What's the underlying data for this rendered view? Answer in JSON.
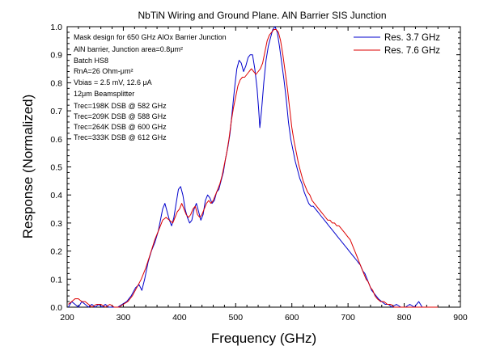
{
  "chart_data": {
    "type": "line",
    "title": "NbTiN Wiring and Ground Plane. AlN Barrier SIS Junction",
    "xlabel": "Frequency (GHz)",
    "ylabel": "Response (Normalized)",
    "xlim": [
      200,
      900
    ],
    "ylim": [
      0,
      1.0
    ],
    "xticks": [
      "200",
      "300",
      "400",
      "500",
      "600",
      "700",
      "800",
      "900"
    ],
    "yticks": [
      "0.0",
      "0.1",
      "0.2",
      "0.3",
      "0.4",
      "0.5",
      "0.6",
      "0.7",
      "0.8",
      "0.9",
      "1.0"
    ],
    "grid": false,
    "legend_position": "top-right",
    "annotations": [
      "Mask design for 650 GHz AlOx Barrier Junction",
      "AlN barrier, Junction area=0.8μm²",
      "Batch HS8",
      "RnA=26 Ohm-μm²",
      "Vbias = 2.5 mV, 12.6 μA",
      "12μm Beamsplitter",
      "Trec=198K DSB @ 582 GHz",
      "Trec=209K DSB @ 588 GHz",
      "Trec=264K DSB @ 600 GHz",
      "Trec=333K DSB @ 612 GHz"
    ],
    "series": [
      {
        "name": "Res. 3.7 GHz",
        "color": "#0000cc",
        "points": [
          [
            202,
            0.0
          ],
          [
            208,
            0.02
          ],
          [
            214,
            0.01
          ],
          [
            220,
            0.0
          ],
          [
            226,
            0.02
          ],
          [
            232,
            0.01
          ],
          [
            238,
            0.0
          ],
          [
            244,
            0.01
          ],
          [
            250,
            0.0
          ],
          [
            256,
            0.01
          ],
          [
            262,
            0.0
          ],
          [
            268,
            0.01
          ],
          [
            274,
            0.0
          ],
          [
            282,
            0.0
          ],
          [
            290,
            0.0
          ],
          [
            298,
            0.01
          ],
          [
            306,
            0.02
          ],
          [
            314,
            0.04
          ],
          [
            322,
            0.07
          ],
          [
            328,
            0.08
          ],
          [
            333,
            0.06
          ],
          [
            338,
            0.1
          ],
          [
            344,
            0.16
          ],
          [
            350,
            0.2
          ],
          [
            356,
            0.23
          ],
          [
            362,
            0.27
          ],
          [
            366,
            0.31
          ],
          [
            370,
            0.35
          ],
          [
            374,
            0.37
          ],
          [
            378,
            0.34
          ],
          [
            382,
            0.31
          ],
          [
            386,
            0.29
          ],
          [
            390,
            0.32
          ],
          [
            394,
            0.37
          ],
          [
            398,
            0.42
          ],
          [
            402,
            0.43
          ],
          [
            406,
            0.4
          ],
          [
            410,
            0.35
          ],
          [
            414,
            0.32
          ],
          [
            418,
            0.3
          ],
          [
            422,
            0.31
          ],
          [
            426,
            0.35
          ],
          [
            430,
            0.37
          ],
          [
            434,
            0.34
          ],
          [
            438,
            0.31
          ],
          [
            442,
            0.33
          ],
          [
            446,
            0.38
          ],
          [
            450,
            0.4
          ],
          [
            454,
            0.39
          ],
          [
            458,
            0.37
          ],
          [
            462,
            0.38
          ],
          [
            466,
            0.41
          ],
          [
            470,
            0.42
          ],
          [
            474,
            0.45
          ],
          [
            478,
            0.48
          ],
          [
            482,
            0.53
          ],
          [
            486,
            0.57
          ],
          [
            490,
            0.62
          ],
          [
            494,
            0.7
          ],
          [
            498,
            0.78
          ],
          [
            502,
            0.85
          ],
          [
            506,
            0.88
          ],
          [
            510,
            0.87
          ],
          [
            514,
            0.84
          ],
          [
            518,
            0.86
          ],
          [
            522,
            0.89
          ],
          [
            526,
            0.9
          ],
          [
            530,
            0.9
          ],
          [
            534,
            0.85
          ],
          [
            538,
            0.78
          ],
          [
            541,
            0.7
          ],
          [
            543,
            0.64
          ],
          [
            546,
            0.7
          ],
          [
            550,
            0.8
          ],
          [
            554,
            0.88
          ],
          [
            558,
            0.93
          ],
          [
            562,
            0.96
          ],
          [
            566,
            0.99
          ],
          [
            570,
            1.0
          ],
          [
            574,
            0.98
          ],
          [
            578,
            0.93
          ],
          [
            582,
            0.87
          ],
          [
            586,
            0.81
          ],
          [
            590,
            0.74
          ],
          [
            594,
            0.66
          ],
          [
            598,
            0.6
          ],
          [
            602,
            0.56
          ],
          [
            606,
            0.52
          ],
          [
            610,
            0.49
          ],
          [
            614,
            0.46
          ],
          [
            618,
            0.44
          ],
          [
            622,
            0.41
          ],
          [
            626,
            0.39
          ],
          [
            630,
            0.37
          ],
          [
            634,
            0.36
          ],
          [
            638,
            0.36
          ],
          [
            642,
            0.35
          ],
          [
            646,
            0.34
          ],
          [
            650,
            0.33
          ],
          [
            654,
            0.32
          ],
          [
            658,
            0.31
          ],
          [
            662,
            0.3
          ],
          [
            666,
            0.29
          ],
          [
            670,
            0.28
          ],
          [
            674,
            0.27
          ],
          [
            678,
            0.26
          ],
          [
            682,
            0.25
          ],
          [
            686,
            0.24
          ],
          [
            690,
            0.23
          ],
          [
            694,
            0.22
          ],
          [
            698,
            0.21
          ],
          [
            702,
            0.2
          ],
          [
            706,
            0.19
          ],
          [
            710,
            0.18
          ],
          [
            714,
            0.17
          ],
          [
            718,
            0.16
          ],
          [
            722,
            0.15
          ],
          [
            726,
            0.13
          ],
          [
            730,
            0.12
          ],
          [
            734,
            0.1
          ],
          [
            738,
            0.08
          ],
          [
            742,
            0.06
          ],
          [
            746,
            0.05
          ],
          [
            750,
            0.04
          ],
          [
            754,
            0.03
          ],
          [
            760,
            0.02
          ],
          [
            766,
            0.01
          ],
          [
            772,
            0.01
          ],
          [
            778,
            0.0
          ],
          [
            786,
            0.01
          ],
          [
            794,
            0.0
          ],
          [
            802,
            0.0
          ],
          [
            810,
            0.01
          ],
          [
            818,
            0.0
          ],
          [
            826,
            0.02
          ],
          [
            832,
            0.0
          ],
          [
            840,
            0.0
          ]
        ]
      },
      {
        "name": "Res. 7.6 GHz",
        "color": "#dd0000",
        "points": [
          [
            202,
            0.01
          ],
          [
            208,
            0.02
          ],
          [
            214,
            0.03
          ],
          [
            220,
            0.03
          ],
          [
            226,
            0.02
          ],
          [
            232,
            0.02
          ],
          [
            238,
            0.01
          ],
          [
            244,
            0.0
          ],
          [
            252,
            0.01
          ],
          [
            260,
            0.01
          ],
          [
            268,
            0.0
          ],
          [
            276,
            0.01
          ],
          [
            284,
            0.0
          ],
          [
            292,
            0.0
          ],
          [
            300,
            0.01
          ],
          [
            308,
            0.02
          ],
          [
            316,
            0.04
          ],
          [
            324,
            0.07
          ],
          [
            332,
            0.1
          ],
          [
            340,
            0.14
          ],
          [
            348,
            0.19
          ],
          [
            356,
            0.24
          ],
          [
            364,
            0.28
          ],
          [
            370,
            0.31
          ],
          [
            376,
            0.32
          ],
          [
            382,
            0.31
          ],
          [
            388,
            0.3
          ],
          [
            392,
            0.32
          ],
          [
            396,
            0.34
          ],
          [
            400,
            0.35
          ],
          [
            404,
            0.37
          ],
          [
            408,
            0.35
          ],
          [
            412,
            0.33
          ],
          [
            416,
            0.32
          ],
          [
            420,
            0.33
          ],
          [
            424,
            0.35
          ],
          [
            428,
            0.36
          ],
          [
            432,
            0.33
          ],
          [
            436,
            0.32
          ],
          [
            440,
            0.33
          ],
          [
            444,
            0.35
          ],
          [
            448,
            0.37
          ],
          [
            452,
            0.38
          ],
          [
            456,
            0.37
          ],
          [
            460,
            0.38
          ],
          [
            464,
            0.4
          ],
          [
            468,
            0.42
          ],
          [
            472,
            0.44
          ],
          [
            476,
            0.47
          ],
          [
            480,
            0.51
          ],
          [
            484,
            0.55
          ],
          [
            488,
            0.6
          ],
          [
            492,
            0.66
          ],
          [
            496,
            0.71
          ],
          [
            500,
            0.75
          ],
          [
            504,
            0.79
          ],
          [
            508,
            0.81
          ],
          [
            512,
            0.82
          ],
          [
            516,
            0.82
          ],
          [
            520,
            0.83
          ],
          [
            524,
            0.84
          ],
          [
            528,
            0.85
          ],
          [
            532,
            0.84
          ],
          [
            536,
            0.83
          ],
          [
            540,
            0.84
          ],
          [
            544,
            0.85
          ],
          [
            548,
            0.87
          ],
          [
            552,
            0.91
          ],
          [
            556,
            0.95
          ],
          [
            560,
            0.97
          ],
          [
            564,
            0.98
          ],
          [
            568,
            0.99
          ],
          [
            572,
            0.99
          ],
          [
            576,
            0.98
          ],
          [
            580,
            0.95
          ],
          [
            584,
            0.9
          ],
          [
            588,
            0.84
          ],
          [
            592,
            0.78
          ],
          [
            596,
            0.71
          ],
          [
            600,
            0.64
          ],
          [
            604,
            0.59
          ],
          [
            608,
            0.55
          ],
          [
            612,
            0.51
          ],
          [
            616,
            0.48
          ],
          [
            620,
            0.45
          ],
          [
            624,
            0.43
          ],
          [
            628,
            0.41
          ],
          [
            632,
            0.4
          ],
          [
            636,
            0.38
          ],
          [
            640,
            0.37
          ],
          [
            644,
            0.36
          ],
          [
            648,
            0.35
          ],
          [
            652,
            0.34
          ],
          [
            656,
            0.33
          ],
          [
            660,
            0.32
          ],
          [
            664,
            0.31
          ],
          [
            668,
            0.31
          ],
          [
            672,
            0.3
          ],
          [
            676,
            0.3
          ],
          [
            680,
            0.29
          ],
          [
            684,
            0.29
          ],
          [
            688,
            0.28
          ],
          [
            692,
            0.27
          ],
          [
            696,
            0.26
          ],
          [
            700,
            0.25
          ],
          [
            704,
            0.24
          ],
          [
            708,
            0.22
          ],
          [
            712,
            0.2
          ],
          [
            716,
            0.18
          ],
          [
            720,
            0.16
          ],
          [
            724,
            0.14
          ],
          [
            728,
            0.12
          ],
          [
            732,
            0.1
          ],
          [
            736,
            0.09
          ],
          [
            740,
            0.07
          ],
          [
            744,
            0.06
          ],
          [
            748,
            0.04
          ],
          [
            752,
            0.03
          ],
          [
            758,
            0.02
          ],
          [
            764,
            0.02
          ],
          [
            770,
            0.01
          ],
          [
            776,
            0.01
          ],
          [
            782,
            0.0
          ],
          [
            790,
            0.0
          ],
          [
            800,
            0.0
          ],
          [
            810,
            0.0
          ],
          [
            820,
            0.0
          ],
          [
            830,
            0.0
          ],
          [
            840,
            0.0
          ],
          [
            850,
            0.0
          ],
          [
            860,
            0.0
          ]
        ]
      }
    ]
  }
}
